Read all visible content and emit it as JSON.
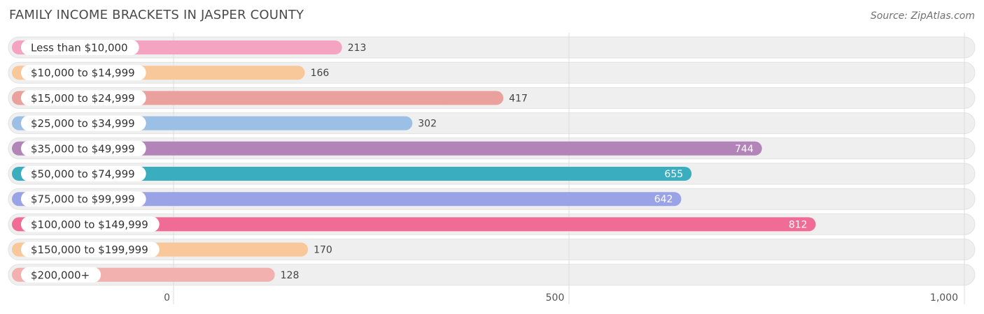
{
  "header": {
    "title": "FAMILY INCOME BRACKETS IN JASPER COUNTY",
    "source": "Source: ZipAtlas.com"
  },
  "chart_data": {
    "type": "bar",
    "orientation": "horizontal",
    "title": "FAMILY INCOME BRACKETS IN JASPER COUNTY",
    "xlabel": "",
    "ylabel": "",
    "xlim": [
      0,
      1000
    ],
    "ticks": [
      0,
      500,
      1000
    ],
    "tick_labels": [
      "0",
      "500",
      "1,000"
    ],
    "grid": true,
    "categories": [
      "Less than $10,000",
      "$10,000 to $14,999",
      "$15,000 to $24,999",
      "$25,000 to $34,999",
      "$35,000 to $49,999",
      "$50,000 to $74,999",
      "$75,000 to $99,999",
      "$100,000 to $149,999",
      "$150,000 to $199,999",
      "$200,000+"
    ],
    "values": [
      213,
      166,
      417,
      302,
      744,
      655,
      642,
      812,
      170,
      128
    ],
    "value_labels": [
      "213",
      "166",
      "417",
      "302",
      "744",
      "655",
      "642",
      "812",
      "170",
      "128"
    ],
    "colors": [
      "#f4a3c0",
      "#f9c89a",
      "#eaa09d",
      "#9cbfe6",
      "#b284b8",
      "#3aadbf",
      "#9aa3e6",
      "#f06b96",
      "#f9c89a",
      "#f2b1ae"
    ]
  }
}
